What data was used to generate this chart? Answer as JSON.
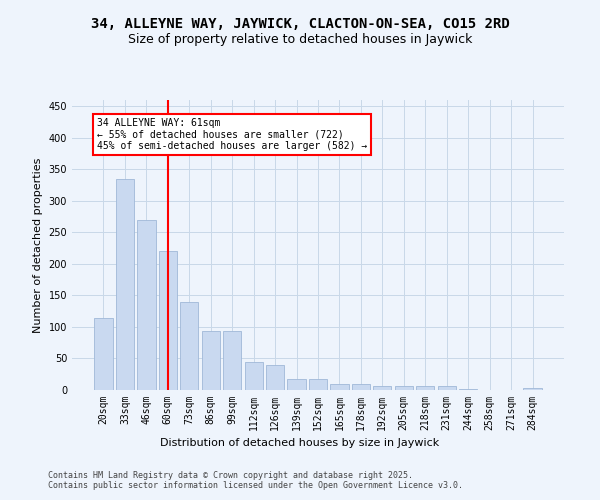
{
  "title": "34, ALLEYNE WAY, JAYWICK, CLACTON-ON-SEA, CO15 2RD",
  "subtitle": "Size of property relative to detached houses in Jaywick",
  "xlabel": "Distribution of detached houses by size in Jaywick",
  "ylabel": "Number of detached properties",
  "categories": [
    "20sqm",
    "33sqm",
    "46sqm",
    "60sqm",
    "73sqm",
    "86sqm",
    "99sqm",
    "112sqm",
    "126sqm",
    "139sqm",
    "152sqm",
    "165sqm",
    "178sqm",
    "192sqm",
    "205sqm",
    "218sqm",
    "231sqm",
    "244sqm",
    "258sqm",
    "271sqm",
    "284sqm"
  ],
  "values": [
    115,
    335,
    270,
    220,
    140,
    93,
    93,
    44,
    40,
    17,
    17,
    10,
    10,
    6,
    6,
    6,
    7,
    2,
    0,
    0,
    3
  ],
  "bar_color": "#c9d9f0",
  "bar_edge_color": "#a0b8d8",
  "grid_color": "#c8d8e8",
  "bg_color": "#eef4fc",
  "vline_x": 3,
  "vline_color": "red",
  "annotation_text": "34 ALLEYNE WAY: 61sqm\n← 55% of detached houses are smaller (722)\n45% of semi-detached houses are larger (582) →",
  "annotation_box_color": "white",
  "annotation_box_edge": "red",
  "footer": "Contains HM Land Registry data © Crown copyright and database right 2025.\nContains public sector information licensed under the Open Government Licence v3.0.",
  "ylim": [
    0,
    460
  ],
  "yticks": [
    0,
    50,
    100,
    150,
    200,
    250,
    300,
    350,
    400,
    450
  ],
  "title_fontsize": 10,
  "subtitle_fontsize": 9,
  "label_fontsize": 8,
  "tick_fontsize": 7,
  "footer_fontsize": 6,
  "ann_fontsize": 7
}
